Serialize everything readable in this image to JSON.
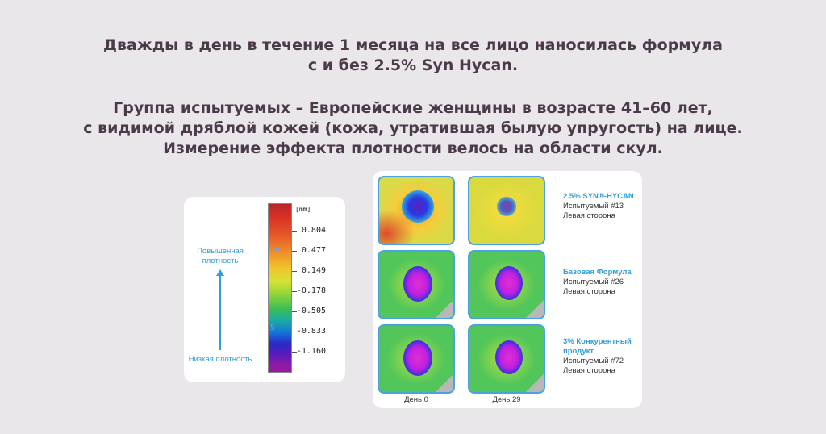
{
  "intro": {
    "line1": "Дважды в день в течение 1 месяца на все лицо наносилась формула",
    "line2": "с и без 2.5% Syn Hycan."
  },
  "group": {
    "line1": "Группа испытуемых – Европейские женщины в возрасте 41–60 лет,",
    "line2": "с видимой дряблой кожей (кожа, утратившая былую упругость) на лице.",
    "line3": "Измерение эффекта плотности велось на области скул."
  },
  "legend": {
    "high_label": "Повышенная плотность",
    "low_label": "Низкая плотность",
    "unit": "[mm]",
    "ticks": [
      "0.804",
      "0.477",
      "0.149",
      "-0.178",
      "-0.505",
      "-0.833",
      "-1.160"
    ],
    "scale_marks": [
      "00",
      "5"
    ],
    "arrow_icon": "arrow-up-icon"
  },
  "rows": [
    {
      "name": "2.5% SYN®-HYCAN",
      "subject": "Испытуемый #13",
      "side": "Левая сторона"
    },
    {
      "name": "Базовая Формула",
      "subject": "Испытуемый #26",
      "side": "Левая сторона"
    },
    {
      "name": "3% Конкурентный продукт",
      "subject": "Испытуемый #72",
      "side": "Левая сторона"
    }
  ],
  "days": [
    "День 0",
    "День 29"
  ],
  "colors": {
    "background": "#eae7ea",
    "text": "#4a3a4a",
    "accent_blue": "#2f9fd8",
    "cell_border": "#4aa3e0"
  }
}
